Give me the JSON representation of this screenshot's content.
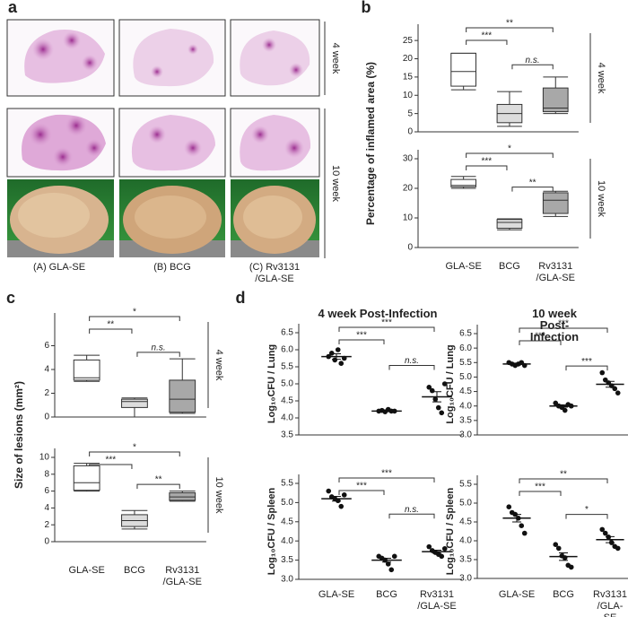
{
  "figure": {
    "panel_labels": [
      "a",
      "b",
      "c",
      "d"
    ]
  },
  "panel_a": {
    "columns": [
      "(A) GLA-SE",
      "(B) BCG",
      "(C) Rv3131\n/GLA-SE"
    ],
    "rows": [
      "4 week",
      "10 week"
    ]
  },
  "chart_data": [
    {
      "type": "box",
      "ylabel": "Percentage of inflamed area (%)",
      "categories": [
        "GLA-SE",
        "BCG",
        "Rv3131\n/GLA-SE"
      ],
      "colors": [
        "#ffffff",
        "#dcdcdc",
        "#a8a8a8"
      ],
      "subplots": [
        {
          "label": "4 week",
          "ylim": [
            0,
            27
          ],
          "yticks": [
            0,
            5,
            10,
            15,
            20,
            25
          ],
          "boxes": [
            {
              "min": 11.5,
              "q1": 12.5,
              "median": 16.5,
              "q3": 21.5,
              "max": 21.5
            },
            {
              "min": 1.5,
              "q1": 2.5,
              "median": 5,
              "q3": 7.5,
              "max": 11
            },
            {
              "min": 5,
              "q1": 5.5,
              "median": 6.5,
              "q3": 12,
              "max": 15
            }
          ],
          "significance": [
            "***",
            "n.s.",
            "**"
          ]
        },
        {
          "label": "10 week",
          "ylim": [
            0,
            30
          ],
          "yticks": [
            0,
            10,
            20,
            30
          ],
          "boxes": [
            {
              "min": 20,
              "q1": 20.5,
              "median": 21,
              "q3": 23,
              "max": 24
            },
            {
              "min": 6,
              "q1": 6.5,
              "median": 8.5,
              "q3": 9.5,
              "max": 9.7
            },
            {
              "min": 10.5,
              "q1": 11.5,
              "median": 16,
              "q3": 18.5,
              "max": 19
            }
          ],
          "significance": [
            "***",
            "**",
            "*"
          ]
        }
      ]
    },
    {
      "type": "box",
      "ylabel": "Size of lesions (mm²)",
      "categories": [
        "GLA-SE",
        "BCG",
        "Rv3131\n/GLA-SE"
      ],
      "colors": [
        "#ffffff",
        "#dcdcdc",
        "#a8a8a8"
      ],
      "subplots": [
        {
          "label": "4 week",
          "ylim": [
            0,
            8
          ],
          "yticks": [
            0,
            2,
            4,
            6
          ],
          "boxes": [
            {
              "min": 3,
              "q1": 3.1,
              "median": 3.3,
              "q3": 4.8,
              "max": 5.2
            },
            {
              "min": 0,
              "q1": 0.8,
              "median": 1.3,
              "q3": 1.5,
              "max": 1.6
            },
            {
              "min": 0.3,
              "q1": 0.4,
              "median": 1.5,
              "q3": 3.1,
              "max": 4.9
            }
          ],
          "significance": [
            "**",
            "n.s.",
            "*"
          ]
        },
        {
          "label": "10 week",
          "ylim": [
            0,
            10
          ],
          "yticks": [
            0,
            2,
            4,
            6,
            8,
            10
          ],
          "boxes": [
            {
              "min": 6,
              "q1": 6.1,
              "median": 7,
              "q3": 9,
              "max": 9.3
            },
            {
              "min": 1.5,
              "q1": 1.8,
              "median": 2.5,
              "q3": 3.2,
              "max": 3.7
            },
            {
              "min": 4.8,
              "q1": 4.9,
              "median": 5.3,
              "q3": 5.8,
              "max": 6
            }
          ],
          "significance": [
            "***",
            "**",
            "*"
          ]
        }
      ]
    },
    {
      "type": "dot",
      "categories": [
        "GLA-SE",
        "BCG",
        "Rv3131\n/GLA-SE"
      ],
      "columns": [
        {
          "title": "4 week Post-Infection",
          "subplots": [
            {
              "ylabel": "Log₁₀CFU / Lung",
              "ylim": [
                3.5,
                6.5
              ],
              "yticks": [
                3.5,
                {
                  "value": 4,
                  "label": "4.0"
                },
                4.5,
                {
                  "value": 5,
                  "label": "5.0"
                },
                5.5,
                {
                  "value": 6,
                  "label": "6.0"
                },
                6.5
              ],
              "groups": [
                {
                  "values": [
                    5.8,
                    5.9,
                    5.7,
                    6.0,
                    5.6,
                    5.75
                  ],
                  "mean": 5.8,
                  "sem": 0.08
                },
                {
                  "values": [
                    4.2,
                    4.22,
                    4.18,
                    4.25,
                    4.2,
                    4.2
                  ],
                  "mean": 4.2,
                  "sem": 0.02
                },
                {
                  "values": [
                    4.9,
                    4.8,
                    4.55,
                    4.3,
                    4.15,
                    5.0
                  ],
                  "mean": 4.62,
                  "sem": 0.15
                }
              ],
              "significance": [
                "***",
                "n.s.",
                "***"
              ]
            },
            {
              "ylabel": "Log₁₀CFU / Spleen",
              "ylim": [
                3,
                5.5
              ],
              "yticks": [
                {
                  "value": 3,
                  "label": "3.0"
                },
                3.5,
                {
                  "value": 4,
                  "label": "4.0"
                },
                4.5,
                {
                  "value": 5,
                  "label": "5.0"
                },
                5.5
              ],
              "groups": [
                {
                  "values": [
                    5.3,
                    5.15,
                    5.1,
                    5.05,
                    4.9,
                    5.2
                  ],
                  "mean": 5.1,
                  "sem": 0.06
                },
                {
                  "values": [
                    3.6,
                    3.55,
                    3.5,
                    3.4,
                    3.25,
                    3.6
                  ],
                  "mean": 3.5,
                  "sem": 0.05
                },
                {
                  "values": [
                    3.85,
                    3.75,
                    3.7,
                    3.65,
                    3.6,
                    3.8
                  ],
                  "mean": 3.72,
                  "sem": 0.04
                }
              ],
              "significance": [
                "***",
                "n.s.",
                "***"
              ]
            }
          ]
        },
        {
          "title": "10 week Post-Infection",
          "subplots": [
            {
              "ylabel": "Log₁₀CFU / Lung",
              "ylim": [
                3,
                6.5
              ],
              "yticks": [
                {
                  "value": 3,
                  "label": "3.0"
                },
                3.5,
                {
                  "value": 4,
                  "label": "4.0"
                },
                4.5,
                {
                  "value": 5,
                  "label": "5.0"
                },
                5.5,
                {
                  "value": 6,
                  "label": "6.0"
                },
                6.5
              ],
              "groups": [
                {
                  "values": [
                    5.5,
                    5.45,
                    5.4,
                    5.45,
                    5.5,
                    5.4
                  ],
                  "mean": 5.45,
                  "sem": 0.03
                },
                {
                  "values": [
                    4.1,
                    4.0,
                    3.95,
                    3.85,
                    4.05,
                    4.0
                  ],
                  "mean": 4.0,
                  "sem": 0.04
                },
                {
                  "values": [
                    5.15,
                    4.9,
                    4.8,
                    4.7,
                    4.6,
                    4.45
                  ],
                  "mean": 4.75,
                  "sem": 0.1
                }
              ],
              "significance": [
                "***",
                "***",
                "***"
              ]
            },
            {
              "ylabel": "Log₁₀CFU / Spleen",
              "ylim": [
                3,
                5.5
              ],
              "yticks": [
                {
                  "value": 3,
                  "label": "3.0"
                },
                3.5,
                {
                  "value": 4,
                  "label": "4.0"
                },
                4.5,
                {
                  "value": 5,
                  "label": "5.0"
                },
                5.5
              ],
              "groups": [
                {
                  "values": [
                    4.9,
                    4.75,
                    4.7,
                    4.6,
                    4.4,
                    4.2
                  ],
                  "mean": 4.6,
                  "sem": 0.1
                },
                {
                  "values": [
                    3.9,
                    3.8,
                    3.6,
                    3.55,
                    3.35,
                    3.3
                  ],
                  "mean": 3.58,
                  "sem": 0.1
                },
                {
                  "values": [
                    4.3,
                    4.2,
                    4.1,
                    3.95,
                    3.85,
                    3.8
                  ],
                  "mean": 4.03,
                  "sem": 0.08
                }
              ],
              "significance": [
                "***",
                "*",
                "**"
              ]
            }
          ]
        }
      ]
    }
  ]
}
